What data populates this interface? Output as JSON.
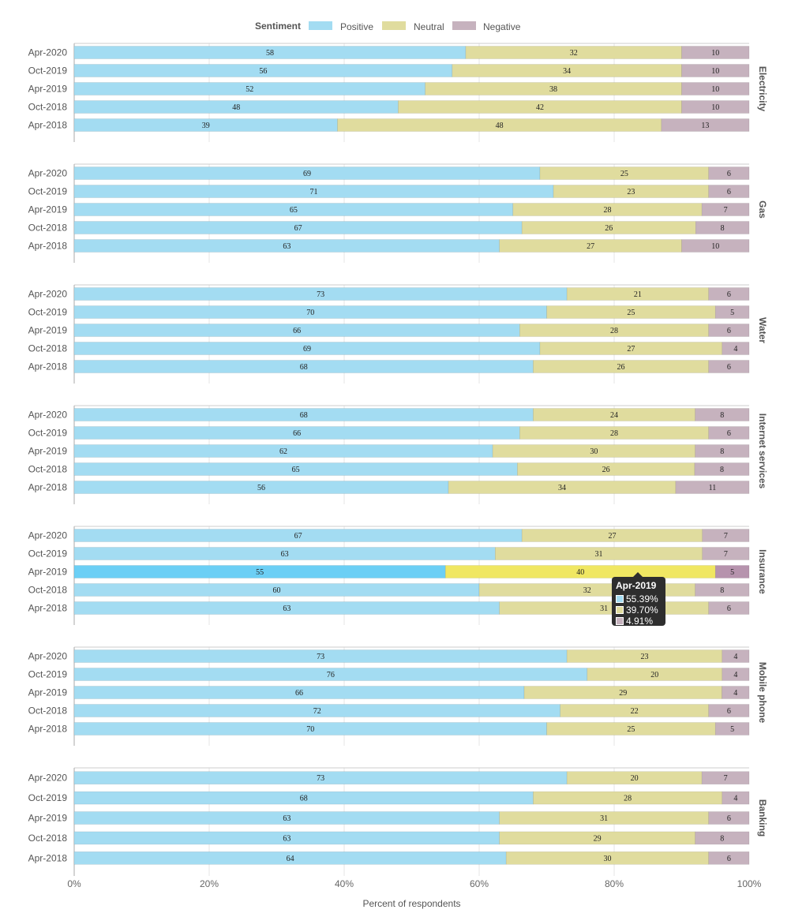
{
  "chart_data": {
    "type": "bar",
    "orientation": "horizontal",
    "stacked": true,
    "legend": {
      "title": "Sentiment",
      "position": "top-center",
      "entries": [
        "Positive",
        "Neutral",
        "Negative"
      ]
    },
    "colors": {
      "Positive": "#a3dcf2",
      "Neutral": "#e0dc9e",
      "Negative": "#c6b2be",
      "Positive_highlight": "#6ccff5",
      "Neutral_highlight": "#f0e762",
      "Negative_highlight": "#b693ad"
    },
    "xlabel": "Percent of respondents",
    "xlim": [
      0,
      100
    ],
    "xticks": [
      "0%",
      "20%",
      "40%",
      "60%",
      "80%",
      "100%"
    ],
    "categories": [
      "Apr-2020",
      "Oct-2019",
      "Apr-2019",
      "Oct-2018",
      "Apr-2018"
    ],
    "facets": [
      {
        "name": "Electricity",
        "positive": [
          58,
          56,
          52,
          48,
          39
        ],
        "neutral": [
          32,
          34,
          38,
          42,
          48
        ],
        "negative": [
          10,
          10,
          10,
          10,
          13
        ]
      },
      {
        "name": "Gas",
        "positive": [
          69,
          71,
          65,
          67,
          63
        ],
        "neutral": [
          25,
          23,
          28,
          26,
          27
        ],
        "negative": [
          6,
          6,
          7,
          8,
          10
        ]
      },
      {
        "name": "Water",
        "positive": [
          73,
          70,
          66,
          69,
          68
        ],
        "neutral": [
          21,
          25,
          28,
          27,
          26
        ],
        "negative": [
          6,
          5,
          6,
          4,
          6
        ]
      },
      {
        "name": "Internet services",
        "positive": [
          68,
          66,
          62,
          65,
          56
        ],
        "neutral": [
          24,
          28,
          30,
          26,
          34
        ],
        "negative": [
          8,
          6,
          8,
          8,
          11
        ]
      },
      {
        "name": "Insurance",
        "positive": [
          67,
          63,
          55,
          60,
          63
        ],
        "neutral": [
          27,
          31,
          40,
          32,
          31
        ],
        "negative": [
          7,
          7,
          5,
          8,
          6
        ]
      },
      {
        "name": "Mobile phone",
        "positive": [
          73,
          76,
          66,
          72,
          70
        ],
        "neutral": [
          23,
          20,
          29,
          22,
          25
        ],
        "negative": [
          4,
          4,
          4,
          6,
          5
        ]
      },
      {
        "name": "Banking",
        "positive": [
          73,
          68,
          63,
          63,
          64
        ],
        "neutral": [
          20,
          28,
          31,
          29,
          30
        ],
        "negative": [
          7,
          4,
          6,
          8,
          6
        ]
      }
    ],
    "highlight": {
      "facet": "Insurance",
      "category": "Apr-2019"
    },
    "tooltip": {
      "title": "Apr-2019",
      "rows": [
        "55.39%",
        "39.70%",
        "4.91%"
      ]
    }
  }
}
